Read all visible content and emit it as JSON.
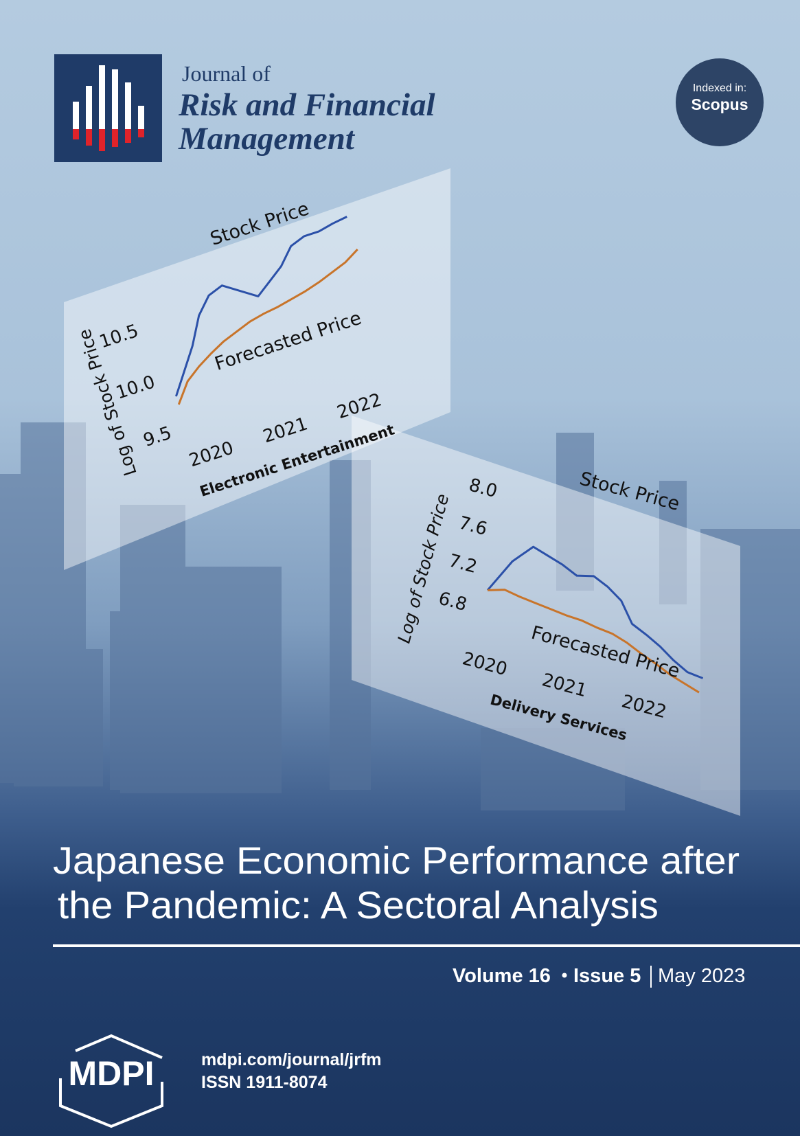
{
  "header": {
    "journal_line1": "Journal of",
    "journal_line2": "Risk and Financial",
    "journal_line3": "Management",
    "badge_line1": "Indexed in:",
    "badge_line2": "Scopus"
  },
  "charts": [
    {
      "type": "line",
      "y_label": "Log of Stock Price",
      "sector": "Electronic Entertainment",
      "x": [
        2019.8,
        2020.0,
        2020.2,
        2020.4,
        2020.6,
        2020.8,
        2021.0,
        2021.2,
        2021.4,
        2021.6,
        2021.8,
        2022.0,
        2022.2,
        2022.4,
        2022.6
      ],
      "series": [
        {
          "name": "Stock Price",
          "color": "#2b50a8",
          "values": [
            9.8,
            10.0,
            10.2,
            10.45,
            10.6,
            10.65,
            10.55,
            10.45,
            10.55,
            10.65,
            10.8,
            10.85,
            10.85,
            10.88,
            10.9
          ]
        },
        {
          "name": "Forecasted Price",
          "color": "#c8742a",
          "values": [
            9.72,
            9.9,
            10.0,
            10.08,
            10.15,
            10.2,
            10.25,
            10.28,
            10.3,
            10.33,
            10.36,
            10.4,
            10.45,
            10.5,
            10.58
          ]
        }
      ],
      "xlim": [
        2019.7,
        2022.7
      ],
      "xticks": [
        2020,
        2021,
        2022
      ],
      "ylim": [
        9.4,
        11.0
      ],
      "yticks": [
        9.5,
        {
          "value": 10,
          "label": "10.0"
        },
        10.5
      ]
    },
    {
      "type": "line",
      "y_label": "Log of Stock Price",
      "sector": "Delivery Services",
      "x": [
        2019.8,
        2020.0,
        2020.2,
        2020.4,
        2020.6,
        2020.8,
        2021.0,
        2021.2,
        2021.4,
        2021.6,
        2021.8,
        2022.0,
        2022.2,
        2022.4,
        2022.6
      ],
      "series": [
        {
          "name": "Stock Price",
          "color": "#2b50a8",
          "values": [
            7.0,
            7.35,
            7.55,
            7.5,
            7.45,
            7.38,
            7.42,
            7.35,
            7.25,
            7.05,
            6.98,
            6.9,
            6.8,
            6.72,
            6.7
          ]
        },
        {
          "name": "Forecasted Price",
          "color": "#c8742a",
          "values": [
            7.0,
            7.05,
            7.02,
            7.0,
            6.98,
            6.96,
            6.95,
            6.92,
            6.9,
            6.85,
            6.78,
            6.72,
            6.65,
            6.6,
            6.55
          ]
        }
      ],
      "xlim": [
        2019.7,
        2022.7
      ],
      "xticks": [
        2020,
        2021,
        2022
      ],
      "ylim": [
        6.5,
        8.15
      ],
      "yticks": [
        6.8,
        7.2,
        7.6,
        {
          "value": 8,
          "label": "8.0"
        }
      ]
    }
  ],
  "title": {
    "line1": "Japanese Economic Performance after",
    "line2": "the Pandemic: A Sectoral Analysis"
  },
  "issue": {
    "volume": "Volume 16",
    "issue": "Issue 5",
    "date": "May 2023"
  },
  "footer": {
    "publisher": "MDPI",
    "url": "mdpi.com/journal/jrfm",
    "issn": "ISSN 1911-8074"
  }
}
